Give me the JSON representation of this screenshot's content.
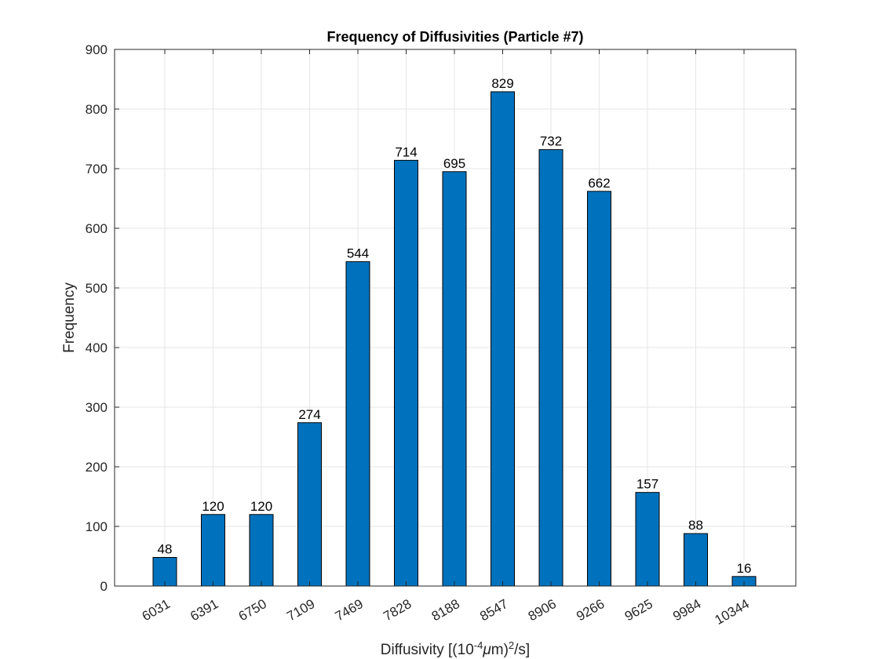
{
  "chart_data": {
    "type": "bar",
    "title": "Frequency of Diffusivities (Particle #7)",
    "xlabel": {
      "prefix": "Diffusivity [(10",
      "exp1": "-4",
      "mu": "μ",
      "mid": "m)",
      "exp2": "2",
      "suffix": "/s]"
    },
    "ylabel": "Frequency",
    "categories": [
      "6031",
      "6391",
      "6750",
      "7109",
      "7469",
      "7828",
      "8188",
      "8547",
      "8906",
      "9266",
      "9625",
      "9984",
      "10344"
    ],
    "values": [
      48,
      120,
      120,
      274,
      544,
      714,
      695,
      829,
      732,
      662,
      157,
      88,
      16
    ],
    "ylim": [
      0,
      900
    ],
    "yticks": [
      0,
      100,
      200,
      300,
      400,
      500,
      600,
      700,
      800,
      900
    ],
    "grid": true,
    "bar_color": "#0072BD",
    "bar_edge_color": "#000000",
    "grid_color": "#e6e6e6"
  }
}
